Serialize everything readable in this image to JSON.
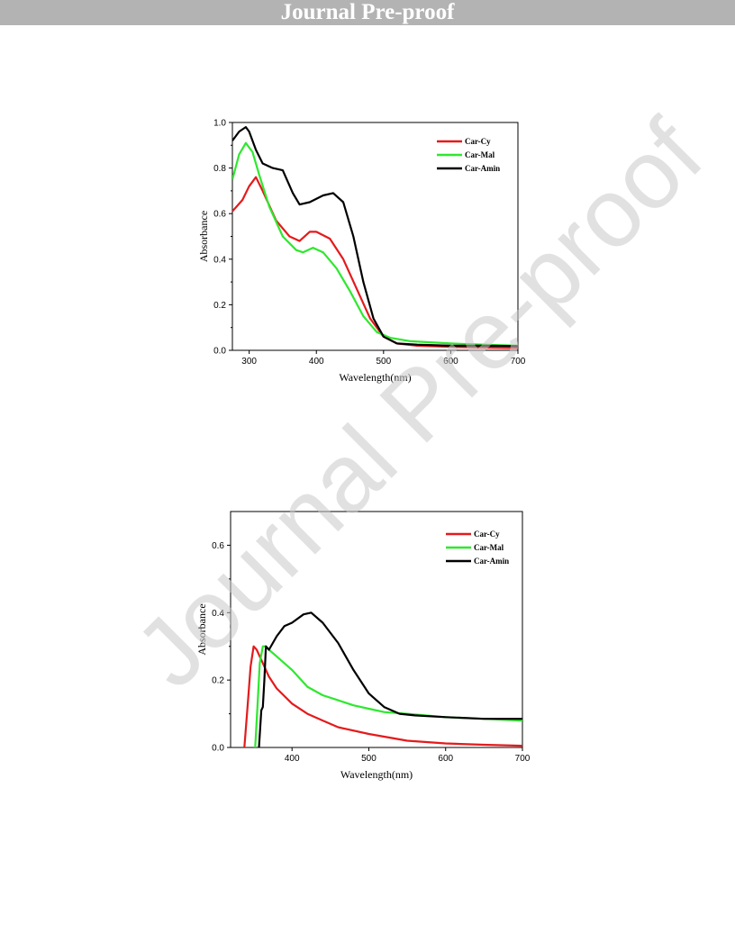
{
  "header": {
    "title": "Journal Pre-proof"
  },
  "watermark": {
    "text": "Journal Pre-proof"
  },
  "colors": {
    "Car-Cy": "#e41a1c",
    "Car-Mal": "#2ee82e",
    "Car-Amin": "#000000"
  },
  "chart_data": [
    {
      "type": "line",
      "xlabel": "Wavelength(nm)",
      "ylabel": "Absorbance",
      "xlim": [
        275,
        700
      ],
      "ylim": [
        0,
        1.0
      ],
      "xticks": [
        300,
        400,
        500,
        600,
        700
      ],
      "yticks": [
        0.0,
        0.2,
        0.4,
        0.6,
        0.8,
        1.0
      ],
      "ytick_labels": [
        "0.0",
        "0.2",
        "0.4",
        "0.6",
        "0.8",
        "1.0"
      ],
      "legend_position": "top-right",
      "grid": false,
      "series": [
        {
          "name": "Car-Cy",
          "color": "#e41a1c",
          "x": [
            275,
            290,
            300,
            310,
            320,
            340,
            360,
            375,
            390,
            400,
            420,
            440,
            460,
            480,
            500,
            520,
            550,
            600,
            650,
            700
          ],
          "y": [
            0.61,
            0.66,
            0.72,
            0.76,
            0.7,
            0.57,
            0.5,
            0.48,
            0.52,
            0.52,
            0.49,
            0.4,
            0.27,
            0.14,
            0.06,
            0.03,
            0.02,
            0.015,
            0.012,
            0.01
          ]
        },
        {
          "name": "Car-Mal",
          "color": "#2ee82e",
          "x": [
            275,
            285,
            295,
            305,
            315,
            330,
            350,
            370,
            380,
            395,
            410,
            430,
            450,
            470,
            490,
            510,
            540,
            600,
            650,
            700
          ],
          "y": [
            0.75,
            0.86,
            0.91,
            0.87,
            0.77,
            0.63,
            0.5,
            0.44,
            0.43,
            0.45,
            0.43,
            0.36,
            0.26,
            0.15,
            0.08,
            0.055,
            0.04,
            0.03,
            0.025,
            0.02
          ]
        },
        {
          "name": "Car-Amin",
          "color": "#000000",
          "x": [
            275,
            285,
            295,
            300,
            310,
            320,
            335,
            350,
            365,
            375,
            390,
            410,
            425,
            440,
            455,
            470,
            485,
            500,
            520,
            550,
            600,
            650,
            700
          ],
          "y": [
            0.92,
            0.96,
            0.98,
            0.96,
            0.88,
            0.82,
            0.8,
            0.79,
            0.69,
            0.64,
            0.65,
            0.68,
            0.69,
            0.65,
            0.5,
            0.3,
            0.14,
            0.06,
            0.03,
            0.025,
            0.02,
            0.02,
            0.018
          ]
        }
      ]
    },
    {
      "type": "line",
      "xlabel": "Wavelength(nm)",
      "ylabel": "Absorbance",
      "xlim": [
        320,
        700
      ],
      "ylim": [
        0,
        0.7
      ],
      "xticks": [
        400,
        500,
        600,
        700
      ],
      "yticks": [
        0.0,
        0.2,
        0.4,
        0.6
      ],
      "ytick_labels": [
        "0.0",
        "0.2",
        "0.4",
        "0.6"
      ],
      "legend_position": "top-right",
      "grid": false,
      "series": [
        {
          "name": "Car-Cy",
          "color": "#e41a1c",
          "x": [
            338,
            342,
            346,
            350,
            354,
            360,
            370,
            380,
            400,
            420,
            440,
            460,
            500,
            550,
            600,
            650,
            700
          ],
          "y": [
            0.0,
            0.12,
            0.24,
            0.3,
            0.29,
            0.26,
            0.21,
            0.175,
            0.13,
            0.1,
            0.08,
            0.06,
            0.04,
            0.02,
            0.012,
            0.008,
            0.005
          ]
        },
        {
          "name": "Car-Mal",
          "color": "#2ee82e",
          "x": [
            352,
            355,
            358,
            362,
            366,
            370,
            380,
            400,
            420,
            440,
            460,
            480,
            500,
            520,
            550,
            600,
            650,
            700
          ],
          "y": [
            0.0,
            0.12,
            0.25,
            0.3,
            0.3,
            0.29,
            0.27,
            0.23,
            0.18,
            0.155,
            0.14,
            0.125,
            0.115,
            0.105,
            0.1,
            0.09,
            0.085,
            0.08
          ]
        },
        {
          "name": "Car-Amin",
          "color": "#000000",
          "x": [
            357,
            360,
            362,
            364,
            366,
            370,
            380,
            390,
            400,
            415,
            425,
            440,
            460,
            480,
            500,
            520,
            540,
            560,
            600,
            650,
            700
          ],
          "y": [
            0.0,
            0.11,
            0.12,
            0.2,
            0.3,
            0.29,
            0.33,
            0.36,
            0.37,
            0.395,
            0.4,
            0.37,
            0.31,
            0.23,
            0.16,
            0.12,
            0.1,
            0.095,
            0.09,
            0.085,
            0.085
          ]
        }
      ]
    }
  ]
}
